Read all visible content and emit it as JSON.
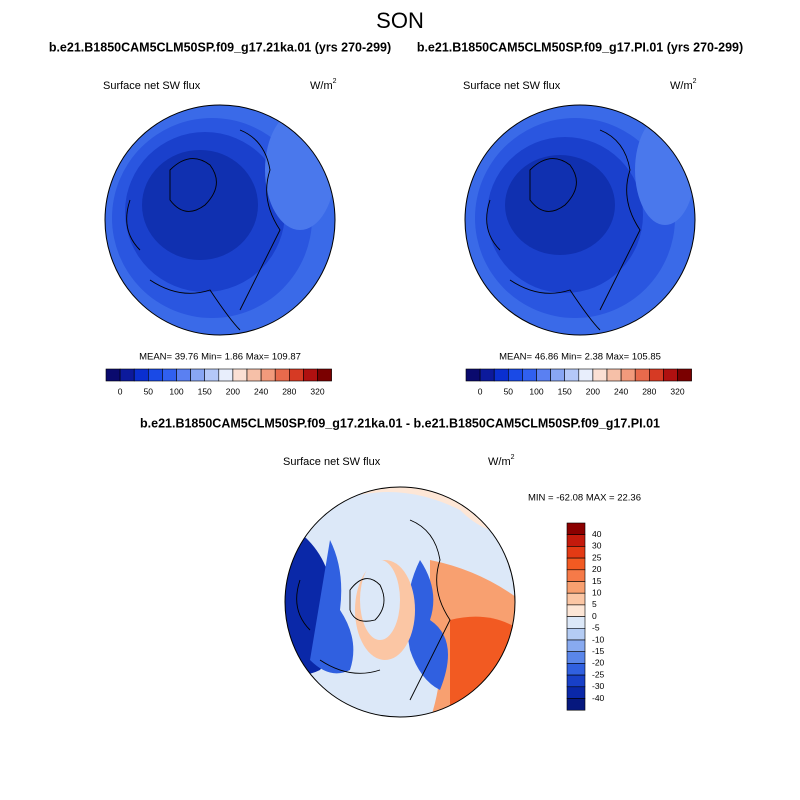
{
  "title": "SON",
  "panels": [
    {
      "case": "b.e21.B1850CAM5CLM50SP.f09_g17.21ka.01 (yrs 270-299)",
      "variable": "Surface net SW flux",
      "units": "W/m",
      "units_power": "2",
      "stats": "MEAN=  39.76  Min=   1.86  Max= 109.87"
    },
    {
      "case": "b.e21.B1850CAM5CLM50SP.f09_g17.PI.01 (yrs 270-299)",
      "variable": "Surface net SW flux",
      "units": "W/m",
      "units_power": "2",
      "stats": "MEAN=  46.86  Min=   2.38  Max= 105.85"
    },
    {
      "case": "b.e21.B1850CAM5CLM50SP.f09_g17.21ka.01 - b.e21.B1850CAM5CLM50SP.f09_g17.PI.01",
      "variable": "Surface net SW flux",
      "units": "W/m",
      "units_power": "2",
      "stats": "MIN = -62.08 MAX =  22.36"
    }
  ],
  "colorbar": {
    "colors": [
      "#0a0a6e",
      "#0c1a9c",
      "#0a2fd0",
      "#1a4ae6",
      "#3060f0",
      "#5a80f2",
      "#88a6f4",
      "#b4c8f8",
      "#e8eefc",
      "#fbe0d4",
      "#f6c0a8",
      "#f29a7c",
      "#e86a4c",
      "#d63a24",
      "#b01010",
      "#7a0000"
    ],
    "labels": [
      0,
      50,
      100,
      150,
      200,
      240,
      280,
      320
    ]
  },
  "diff_colorbar": {
    "colors": [
      "#8b0000",
      "#c41a0c",
      "#e33a14",
      "#f25a22",
      "#f67a48",
      "#f8a070",
      "#fbc6a4",
      "#fde6d6",
      "#dce8f8",
      "#b4ccf4",
      "#88aaf0",
      "#5a86ea",
      "#3060e0",
      "#1840c8",
      "#0a28a8",
      "#06187e"
    ],
    "labels": [
      40,
      30,
      25,
      20,
      15,
      10,
      5,
      0,
      -5,
      -10,
      -15,
      -20,
      -25,
      -30,
      -40
    ]
  }
}
